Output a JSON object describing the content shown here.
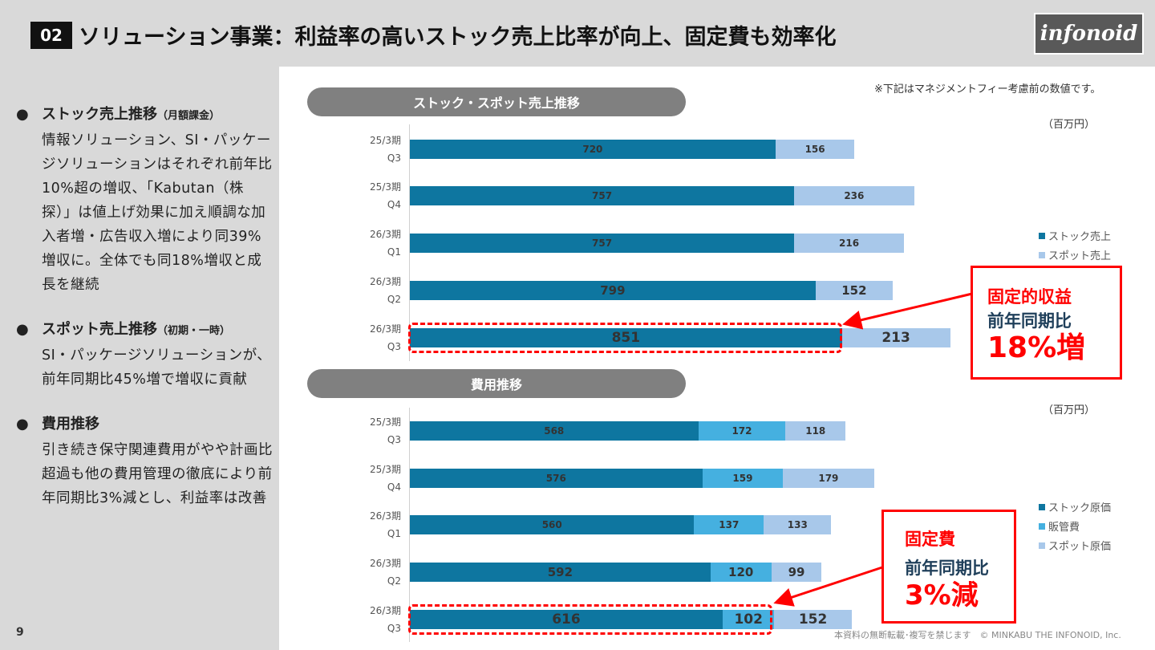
{
  "header": {
    "number": "02",
    "title": "ソリューション事業：利益率の高いストック売上比率が向上、固定費も効率化",
    "logo": "infonoid"
  },
  "left": [
    {
      "heading": "ストック売上推移",
      "sub": "（月額課金）",
      "body": "情報ソリューション、SI・パッケージソリューションはそれぞれ前年比10%超の増収、「Kabutan（株探）」は値上げ効果に加え順調な加入者増・広告収入増により同39%増収に。全体でも同18%増収と成長を継続"
    },
    {
      "heading": "スポット売上推移",
      "sub": "（初期・一時）",
      "body": "SI・パッケージソリューションが、前年同期比45%増で増収に貢献"
    },
    {
      "heading": "費用推移",
      "sub": "",
      "body": "引き続き保守関連費用がやや計画比超過も他の費用管理の徹底により前年同期比3%減とし、利益率は改善"
    }
  ],
  "page_number": "9",
  "note": "※下記はマネジメントフィー考慮前の数値です。",
  "footer": "本資料の無断転載･複写を禁じます　© MINKABU THE INFONOID, Inc.",
  "colors": {
    "stock": "#0e76a0",
    "sga": "#45b0e0",
    "spot": "#a8c8ea",
    "callout": "#ff0000",
    "navy": "#1f3f5a"
  },
  "chart_data": [
    {
      "type": "bar",
      "orientation": "horizontal",
      "stacked": true,
      "title": "ストック・スポット売上推移",
      "unit": "（百万円）",
      "categories": [
        "25/3期 Q3",
        "25/3期 Q4",
        "26/3期 Q1",
        "26/3期 Q2",
        "26/3期 Q3"
      ],
      "series": [
        {
          "name": "ストック売上",
          "color": "#0e76a0",
          "values": [
            720,
            757,
            757,
            799,
            851
          ]
        },
        {
          "name": "スポット売上",
          "color": "#a8c8ea",
          "values": [
            156,
            236,
            216,
            152,
            213
          ]
        }
      ],
      "legend": "right",
      "callout": {
        "line1": "固定的収益",
        "line2": "前年同期比",
        "line3": "18%増"
      }
    },
    {
      "type": "bar",
      "orientation": "horizontal",
      "stacked": true,
      "title": "費用推移",
      "unit": "（百万円）",
      "categories": [
        "25/3期 Q3",
        "25/3期 Q4",
        "26/3期 Q1",
        "26/3期 Q2",
        "26/3期 Q3"
      ],
      "series": [
        {
          "name": "ストック原価",
          "color": "#0e76a0",
          "values": [
            568,
            576,
            560,
            592,
            616
          ]
        },
        {
          "name": "販管費",
          "color": "#45b0e0",
          "values": [
            172,
            159,
            137,
            120,
            102
          ]
        },
        {
          "name": "スポット原価",
          "color": "#a8c8ea",
          "values": [
            118,
            179,
            133,
            99,
            152
          ]
        }
      ],
      "legend": "right",
      "callout": {
        "line1": "固定費",
        "line2": "前年同期比",
        "line3": "3%減"
      }
    }
  ]
}
